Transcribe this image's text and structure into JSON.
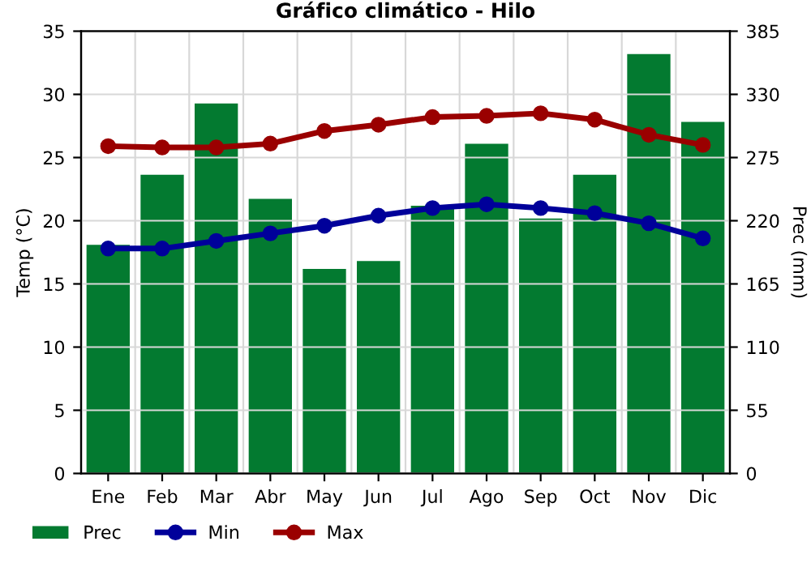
{
  "chart_data": {
    "type": "bar",
    "title": "Gráfico climático - Hilo",
    "ylabel": "Temp (°C)",
    "y2label": "Prec (mm)",
    "categories": [
      "Ene",
      "Feb",
      "Mar",
      "Abr",
      "May",
      "Jun",
      "Jul",
      "Ago",
      "Sep",
      "Oct",
      "Nov",
      "Dic"
    ],
    "series": [
      {
        "name": "Prec",
        "axis": "y2",
        "color": "#037a30",
        "values": [
          199,
          260,
          322,
          239,
          178,
          185,
          233,
          287,
          222,
          260,
          365,
          306
        ]
      },
      {
        "name": "Min",
        "type": "line",
        "color": "#00009a",
        "values": [
          17.8,
          17.8,
          18.4,
          19.0,
          19.6,
          20.4,
          21.0,
          21.3,
          21.0,
          20.6,
          19.8,
          18.6
        ]
      },
      {
        "name": "Max",
        "type": "line",
        "color": "#9a0000",
        "values": [
          25.9,
          25.8,
          25.8,
          26.1,
          27.1,
          27.6,
          28.2,
          28.3,
          28.5,
          28.0,
          26.8,
          26.0
        ]
      }
    ],
    "ylim": [
      0,
      35
    ],
    "yticks": [
      0,
      5,
      10,
      15,
      20,
      25,
      30,
      35
    ],
    "y2lim": [
      0,
      385
    ],
    "y2ticks": [
      0,
      55,
      110,
      165,
      220,
      275,
      330,
      385
    ],
    "grid": true,
    "legend": "bottom left",
    "marker": "circle",
    "line_style": "solid"
  }
}
